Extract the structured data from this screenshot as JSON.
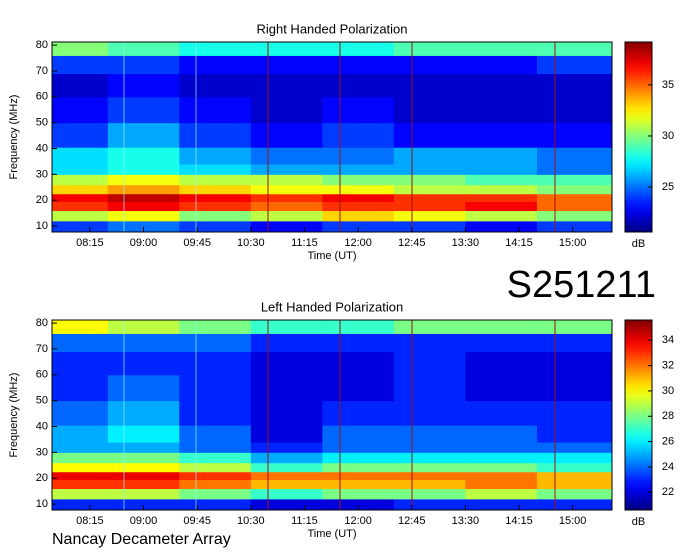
{
  "page": {
    "id_label": "S251211",
    "footer": "Nancay Decameter Array"
  },
  "chart_data": [
    {
      "type": "heatmap",
      "title": "Right Handed Polarization",
      "xlabel": "Time (UT)",
      "ylabel": "Frequency (MHz)",
      "colorbar_label": "dB",
      "colormap": "jet",
      "x": [
        8,
        9,
        10,
        11,
        12,
        13,
        14,
        15
      ],
      "y": [
        10,
        14,
        18,
        21,
        24,
        28,
        32,
        36,
        45,
        55,
        65,
        73,
        79
      ],
      "z": [
        [
          24,
          25,
          24,
          23,
          24,
          24,
          23,
          24
        ],
        [
          31,
          32,
          30,
          31,
          33,
          32,
          31,
          30
        ],
        [
          36,
          37,
          36,
          35,
          36,
          36,
          37,
          35
        ],
        [
          37,
          38,
          37,
          36,
          37,
          36,
          36,
          35
        ],
        [
          33,
          34,
          33,
          32,
          32,
          31,
          31,
          30
        ],
        [
          31,
          32,
          31,
          31,
          30,
          30,
          29,
          29
        ],
        [
          27,
          28,
          27,
          26,
          26,
          26,
          26,
          25
        ],
        [
          27,
          28,
          26,
          25,
          25,
          26,
          26,
          25
        ],
        [
          24,
          26,
          24,
          23,
          24,
          23,
          23,
          23
        ],
        [
          23,
          24,
          23,
          22,
          23,
          22,
          22,
          22
        ],
        [
          22,
          23,
          22,
          22,
          22,
          22,
          22,
          22
        ],
        [
          24,
          24,
          23,
          23,
          23,
          23,
          23,
          24
        ],
        [
          30,
          29,
          28,
          28,
          28,
          29,
          29,
          29
        ]
      ],
      "xlim": [
        7.72,
        15.55
      ],
      "ylim": [
        7.7,
        81.2
      ],
      "xticks": [
        {
          "value": 8.25,
          "label": "08:15"
        },
        {
          "value": 9,
          "label": "09:00"
        },
        {
          "value": 9.75,
          "label": "09:45"
        },
        {
          "value": 10.5,
          "label": "10:30"
        },
        {
          "value": 11.25,
          "label": "11:15"
        },
        {
          "value": 12,
          "label": "12:00"
        },
        {
          "value": 12.75,
          "label": "12:45"
        },
        {
          "value": 13.5,
          "label": "13:30"
        },
        {
          "value": 14.25,
          "label": "14:15"
        },
        {
          "value": 15,
          "label": "15:00"
        }
      ],
      "yticks": [
        10,
        20,
        30,
        40,
        50,
        60,
        70,
        80
      ],
      "clim": [
        20.6,
        39.2
      ],
      "cticks": [
        25,
        30,
        35
      ]
    },
    {
      "type": "heatmap",
      "title": "Left Handed Polarization",
      "xlabel": "Time (UT)",
      "ylabel": "Frequency (MHz)",
      "colorbar_label": "dB",
      "colormap": "jet",
      "x": [
        8,
        9,
        10,
        11,
        12,
        13,
        14,
        15
      ],
      "y": [
        10,
        14,
        18,
        21,
        24,
        28,
        32,
        36,
        45,
        55,
        65,
        73,
        79
      ],
      "z": [
        [
          23,
          23,
          23,
          22,
          22,
          23,
          23,
          23
        ],
        [
          29,
          29,
          28,
          27,
          28,
          28,
          29,
          28
        ],
        [
          33,
          33,
          32,
          31,
          31,
          31,
          32,
          31
        ],
        [
          34,
          34,
          33,
          32,
          32,
          32,
          32,
          31
        ],
        [
          30,
          30,
          29,
          27,
          28,
          28,
          28,
          27
        ],
        [
          28,
          28,
          27,
          25,
          26,
          26,
          26,
          26
        ],
        [
          25,
          25,
          24,
          23,
          24,
          24,
          24,
          24
        ],
        [
          25,
          26,
          24,
          22,
          24,
          24,
          24,
          23
        ],
        [
          24,
          25,
          23,
          22,
          23,
          23,
          23,
          23
        ],
        [
          23,
          24,
          23,
          22,
          22,
          23,
          22,
          22
        ],
        [
          23,
          23,
          23,
          22,
          22,
          23,
          22,
          22
        ],
        [
          24,
          24,
          24,
          23,
          23,
          23,
          23,
          23
        ],
        [
          30,
          29,
          28,
          27,
          27,
          28,
          28,
          28
        ]
      ],
      "xlim": [
        7.72,
        15.55
      ],
      "ylim": [
        7.7,
        81.2
      ],
      "xticks": [
        {
          "value": 8.25,
          "label": "08:15"
        },
        {
          "value": 9,
          "label": "09:00"
        },
        {
          "value": 9.75,
          "label": "09:45"
        },
        {
          "value": 10.5,
          "label": "10:30"
        },
        {
          "value": 11.25,
          "label": "11:15"
        },
        {
          "value": 12,
          "label": "12:00"
        },
        {
          "value": 12.75,
          "label": "12:45"
        },
        {
          "value": 13.5,
          "label": "13:30"
        },
        {
          "value": 14.25,
          "label": "14:15"
        },
        {
          "value": 15,
          "label": "15:00"
        }
      ],
      "yticks": [
        10,
        20,
        30,
        40,
        50,
        60,
        70,
        80
      ],
      "clim": [
        20.6,
        35.6
      ],
      "cticks": [
        22,
        24,
        26,
        28,
        30,
        32,
        34
      ]
    }
  ]
}
